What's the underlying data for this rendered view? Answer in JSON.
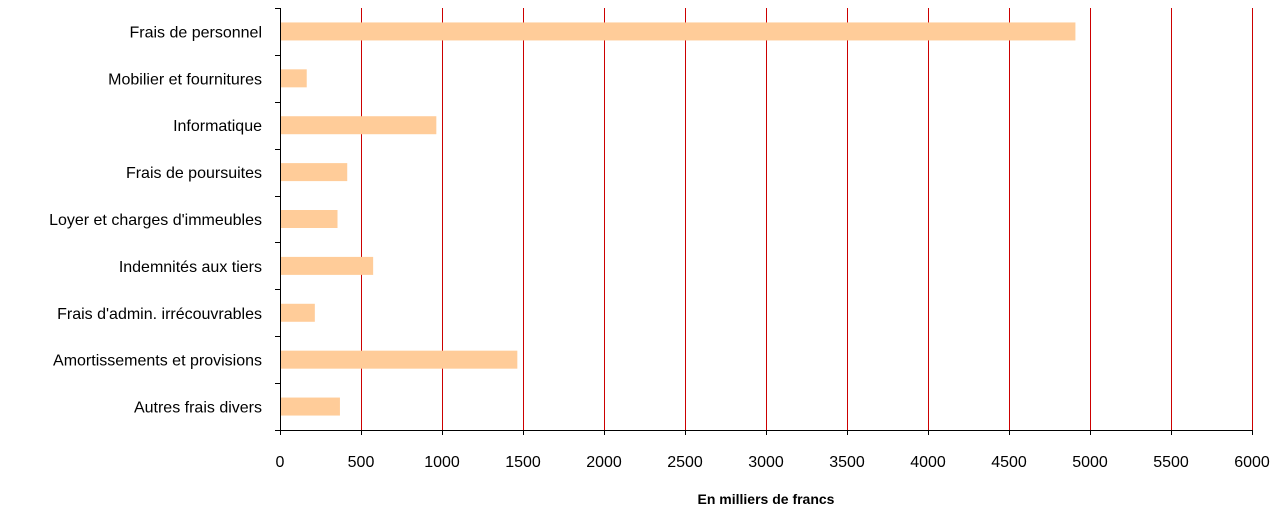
{
  "chart_data": {
    "type": "bar",
    "orientation": "horizontal",
    "categories": [
      "Frais de personnel",
      "Mobilier et fournitures",
      "Informatique",
      "Frais de poursuites",
      "Loyer et charges d'immeubles",
      "Indemnités aux tiers",
      "Frais d'admin. irrécouvrables",
      "Amortissements et provisions",
      "Autres frais divers"
    ],
    "values": [
      4910,
      165,
      965,
      415,
      355,
      575,
      215,
      1465,
      370
    ],
    "xlabel": "En milliers de francs",
    "ylabel": "",
    "xlim": [
      0,
      6000
    ],
    "xticks": [
      0,
      500,
      1000,
      1500,
      2000,
      2500,
      3000,
      3500,
      4000,
      4500,
      5000,
      5500,
      6000
    ],
    "grid": "vertical",
    "legend": "none",
    "colors": {
      "bar": "#FFCC99",
      "grid": "#CC0000",
      "axis": "#000000"
    }
  }
}
